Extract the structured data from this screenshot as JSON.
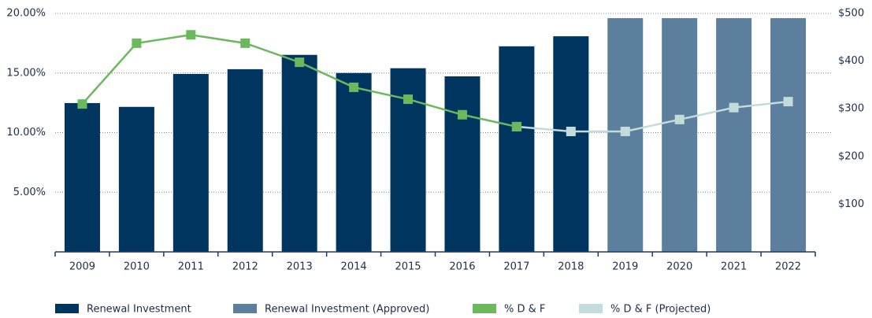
{
  "chart_data": {
    "type": "bar-line",
    "categories": [
      "2009",
      "2010",
      "2011",
      "2012",
      "2013",
      "2014",
      "2015",
      "2016",
      "2017",
      "2018",
      "2019",
      "2020",
      "2021",
      "2022"
    ],
    "series": [
      {
        "name": "Renewal Investment",
        "type": "bar",
        "axis": "y2",
        "color": "#00355f",
        "values": [
          312,
          304,
          373,
          383,
          413,
          375,
          385,
          368,
          431,
          452,
          null,
          null,
          null,
          null
        ]
      },
      {
        "name": "Renewal Investment (Approved)",
        "type": "bar",
        "axis": "y2",
        "color": "#5c7f9e",
        "values": [
          null,
          null,
          null,
          null,
          null,
          null,
          null,
          null,
          null,
          null,
          490,
          490,
          490,
          490
        ]
      },
      {
        "name": "% D & F (Projected)",
        "type": "line",
        "axis": "y",
        "color": "#c3dcdb",
        "values": [
          null,
          null,
          null,
          null,
          null,
          null,
          null,
          null,
          10.5,
          10.1,
          10.1,
          11.1,
          12.1,
          12.6
        ]
      },
      {
        "name": "% D & F",
        "type": "line",
        "axis": "y",
        "color": "#6bb85d",
        "values": [
          12.4,
          17.5,
          18.2,
          17.5,
          15.9,
          13.8,
          12.8,
          11.5,
          10.5,
          null,
          null,
          null,
          null,
          null
        ]
      }
    ],
    "legend_order": [
      0,
      1,
      3,
      2
    ],
    "ylim": [
      0,
      20
    ],
    "yticks": [
      {
        "value": 5,
        "label": "5.00%"
      },
      {
        "value": 10,
        "label": "10.00%"
      },
      {
        "value": 15,
        "label": "15.00%"
      },
      {
        "value": 20,
        "label": "20.00%"
      }
    ],
    "y2lim": [
      0,
      500
    ],
    "y2ticks": [
      {
        "value": 100,
        "label": "$100"
      },
      {
        "value": 200,
        "label": "$200"
      },
      {
        "value": 300,
        "label": "$300"
      },
      {
        "value": 400,
        "label": "$400"
      },
      {
        "value": 500,
        "label": "$500"
      }
    ],
    "grid": true
  }
}
